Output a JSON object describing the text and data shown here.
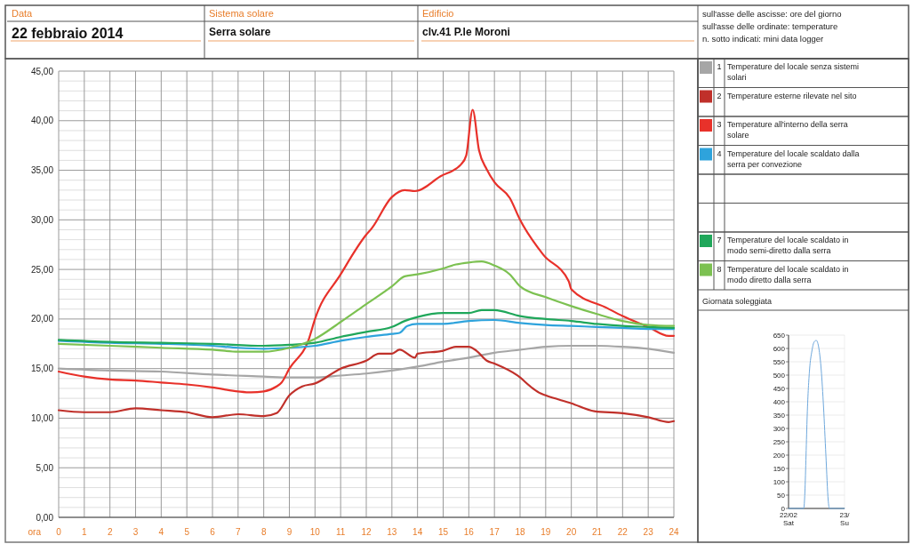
{
  "chart_data": [
    {
      "type": "other",
      "annotations": [
        "Data",
        "22 febbraio 2014",
        "Sistema solare",
        "Serra solare",
        "Edificio",
        "clv.41 P.le Moroni",
        "sull'asse delle ascisse: ore del giorno",
        "sull'asse delle ordinate: temperature",
        "n. sotto indicati: mini data logger"
      ]
    },
    {
      "type": "line",
      "xlabel": "ora",
      "xlim": [
        0,
        24
      ],
      "xticks": [
        0,
        1,
        2,
        3,
        4,
        5,
        6,
        7,
        8,
        9,
        10,
        11,
        12,
        13,
        14,
        15,
        16,
        17,
        18,
        19,
        20,
        21,
        22,
        23,
        24
      ],
      "ylim": [
        0,
        45
      ],
      "yticks": [
        {
          "value": 0,
          "label": "0,00"
        },
        {
          "value": 5,
          "label": "5,00"
        },
        {
          "value": 10,
          "label": "10,00"
        },
        {
          "value": 15,
          "label": "15,00"
        },
        {
          "value": 20,
          "label": "20,00"
        },
        {
          "value": 25,
          "label": "25,00"
        },
        {
          "value": 30,
          "label": "30,00"
        },
        {
          "value": 35,
          "label": "35,00"
        },
        {
          "value": 40,
          "label": "40,00"
        },
        {
          "value": 45,
          "label": "45,00"
        }
      ],
      "grid": true,
      "legend": "right",
      "marker": "none",
      "line_style": "solid",
      "annotations": [
        "1",
        "2",
        "3",
        "4",
        "7",
        "8"
      ],
      "series": [
        {
          "name": "Temperature del locale senza sistemi solari",
          "color": "#a6a6a6",
          "x": [
            0,
            2,
            4,
            6,
            8,
            9,
            10,
            11,
            12,
            13,
            14,
            15,
            16,
            17,
            18,
            19,
            20,
            21,
            22,
            23,
            24
          ],
          "values": [
            15.0,
            14.8,
            14.7,
            14.4,
            14.2,
            14.1,
            14.1,
            14.3,
            14.5,
            14.8,
            15.2,
            15.7,
            16.1,
            16.6,
            16.9,
            17.2,
            17.3,
            17.3,
            17.2,
            17.0,
            16.6
          ]
        },
        {
          "name": "Temperature esterne rilevate nel sito",
          "color": "#c0302a",
          "x": [
            0,
            1,
            2,
            3,
            4,
            5,
            6,
            7,
            8,
            8.5,
            9,
            9.5,
            10,
            11,
            12,
            12.5,
            13,
            13.3,
            13.9,
            14,
            15,
            15.5,
            16,
            16.3,
            16.7,
            17,
            17.9,
            18.5,
            18.8,
            19,
            20,
            20.9,
            22,
            23,
            23.8,
            24
          ],
          "values": [
            10.8,
            10.6,
            10.6,
            11.0,
            10.8,
            10.6,
            10.1,
            10.4,
            10.2,
            10.5,
            12.3,
            13.2,
            13.5,
            15.0,
            15.8,
            16.5,
            16.5,
            16.9,
            16.1,
            16.5,
            16.8,
            17.2,
            17.2,
            16.8,
            15.8,
            15.5,
            14.3,
            13.0,
            12.5,
            12.3,
            11.5,
            10.7,
            10.5,
            10.1,
            9.6,
            9.7
          ]
        },
        {
          "name": "Temperature all'interno della serra solare",
          "color": "#e8312a",
          "x": [
            0,
            1,
            2,
            3,
            4,
            5,
            6,
            7,
            7.5,
            8,
            8.5,
            8.7,
            9,
            9.75,
            10,
            11,
            12,
            12.2,
            13,
            13.5,
            13.9,
            14.9,
            15.7,
            15.9,
            16.15,
            16.4,
            16.7,
            17,
            17.6,
            18,
            18.9,
            19.9,
            20,
            21.4,
            22,
            23,
            23.8,
            24
          ],
          "values": [
            14.7,
            14.2,
            13.9,
            13.8,
            13.6,
            13.4,
            13.1,
            12.7,
            12.6,
            12.7,
            13.2,
            13.6,
            15.0,
            17.9,
            20.0,
            24.5,
            28.5,
            29.1,
            32.3,
            33.0,
            32.9,
            34.4,
            35.6,
            36.5,
            41.1,
            37.0,
            35.1,
            33.8,
            32.2,
            30.0,
            26.5,
            23.8,
            23.0,
            21.1,
            20.3,
            19.2,
            18.3,
            18.3
          ]
        },
        {
          "name": "Temperature del locale scaldato dalla serra per convezione",
          "color": "#2ea3dc",
          "x": [
            0,
            2,
            4,
            6,
            7,
            8,
            9,
            10,
            11,
            12,
            13,
            13.3,
            13.6,
            14,
            15,
            16,
            17,
            18,
            19,
            20,
            21,
            22,
            23,
            24
          ],
          "values": [
            17.8,
            17.6,
            17.5,
            17.3,
            17.1,
            17.0,
            17.1,
            17.3,
            17.8,
            18.2,
            18.5,
            18.6,
            19.3,
            19.5,
            19.5,
            19.8,
            19.9,
            19.6,
            19.4,
            19.3,
            19.2,
            19.1,
            19.0,
            19.0
          ]
        },
        {
          "name": "Temperature del locale scaldato in modo semi-diretto dalla serra",
          "color": "#1fa75a",
          "x": [
            0,
            2,
            4,
            6,
            8,
            9,
            10,
            11,
            12,
            13,
            13.5,
            14,
            15,
            16,
            16.5,
            17,
            18,
            19,
            20,
            21,
            22,
            23,
            24
          ],
          "values": [
            17.9,
            17.7,
            17.6,
            17.5,
            17.3,
            17.4,
            17.6,
            18.2,
            18.7,
            19.2,
            19.8,
            20.2,
            20.6,
            20.6,
            20.9,
            20.9,
            20.3,
            20.0,
            19.8,
            19.5,
            19.3,
            19.2,
            19.1
          ]
        },
        {
          "name": "Temperature del locale scaldato in modo diretto dalla serra",
          "color": "#7cc151",
          "x": [
            0,
            2,
            4,
            6,
            7,
            8,
            9,
            10,
            11,
            12,
            13,
            13.5,
            14,
            15,
            15.5,
            16,
            16.5,
            17,
            17.6,
            18,
            19,
            20,
            21,
            22,
            23,
            24
          ],
          "values": [
            17.5,
            17.3,
            17.1,
            16.9,
            16.7,
            16.7,
            17.1,
            18.0,
            19.7,
            21.5,
            23.3,
            24.3,
            24.5,
            25.1,
            25.5,
            25.7,
            25.8,
            25.4,
            24.5,
            23.3,
            22.2,
            21.3,
            20.5,
            19.8,
            19.4,
            19.3
          ]
        }
      ]
    },
    {
      "type": "line",
      "title": "Giornata soleggiata",
      "xlim": [
        "2014-02-22T00:00",
        "2014-02-23T00:00"
      ],
      "xticks": [
        {
          "value": "2014-02-22T00:00",
          "label": "22/02 Sat"
        },
        {
          "value": "2014-02-23T00:00",
          "label": "23/ Su"
        }
      ],
      "ylim": [
        0,
        650
      ],
      "yticks": [
        0,
        50,
        100,
        150,
        200,
        250,
        300,
        350,
        400,
        450,
        500,
        550,
        600,
        650
      ],
      "grid": "y",
      "marker": "none",
      "series": [
        {
          "color": "#6fa8dc",
          "x": [
            "2014-02-22T00:00",
            "2014-02-22T06:30",
            "2014-02-22T07:00",
            "2014-02-22T07:30",
            "2014-02-22T08:00",
            "2014-02-22T09:00",
            "2014-02-22T10:00",
            "2014-02-22T11:00",
            "2014-02-22T11:55",
            "2014-02-22T13:00",
            "2014-02-22T14:00",
            "2014-02-22T15:00",
            "2014-02-22T16:00",
            "2014-02-22T17:00",
            "2014-02-22T17:30",
            "2014-02-23T00:00"
          ],
          "values": [
            0,
            0,
            60,
            200,
            350,
            520,
            590,
            625,
            630,
            600,
            520,
            380,
            200,
            30,
            0,
            0
          ]
        }
      ]
    }
  ]
}
